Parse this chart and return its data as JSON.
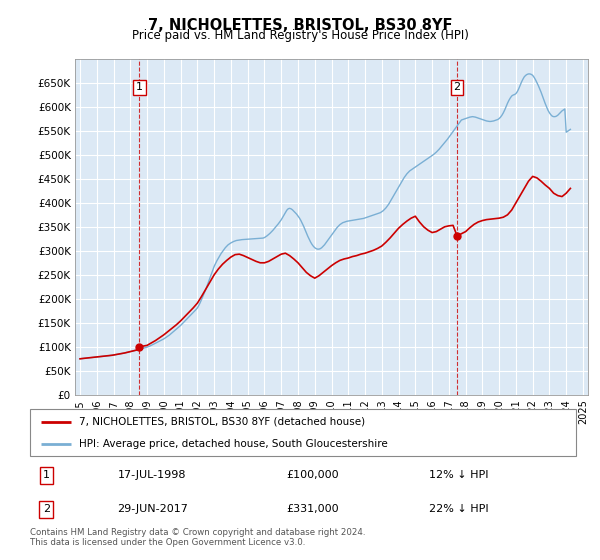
{
  "title": "7, NICHOLETTES, BRISTOL, BS30 8YF",
  "subtitle": "Price paid vs. HM Land Registry's House Price Index (HPI)",
  "legend_line1": "7, NICHOLETTES, BRISTOL, BS30 8YF (detached house)",
  "legend_line2": "HPI: Average price, detached house, South Gloucestershire",
  "footnote": "Contains HM Land Registry data © Crown copyright and database right 2024.\nThis data is licensed under the Open Government Licence v3.0.",
  "point1_date": "17-JUL-1998",
  "point1_price": "£100,000",
  "point1_pct": "12% ↓ HPI",
  "point2_date": "29-JUN-2017",
  "point2_price": "£331,000",
  "point2_pct": "22% ↓ HPI",
  "red_color": "#cc0000",
  "blue_color": "#7aafd4",
  "bg_color": "#dce9f5",
  "ylim": [
    0,
    700000
  ],
  "yticks": [
    0,
    50000,
    100000,
    150000,
    200000,
    250000,
    300000,
    350000,
    400000,
    450000,
    500000,
    550000,
    600000,
    650000
  ],
  "ytick_labels": [
    "£0",
    "£50K",
    "£100K",
    "£150K",
    "£200K",
    "£250K",
    "£300K",
    "£350K",
    "£400K",
    "£450K",
    "£500K",
    "£550K",
    "£600K",
    "£650K"
  ],
  "xlim_start": 1994.7,
  "xlim_end": 2025.3,
  "point1_x": 1998.54,
  "point1_y": 100000,
  "point2_x": 2017.49,
  "point2_y": 331000,
  "hpi_x": [
    1995.0,
    1995.083,
    1995.167,
    1995.25,
    1995.333,
    1995.417,
    1995.5,
    1995.583,
    1995.667,
    1995.75,
    1995.833,
    1995.917,
    1996.0,
    1996.083,
    1996.167,
    1996.25,
    1996.333,
    1996.417,
    1996.5,
    1996.583,
    1996.667,
    1996.75,
    1996.833,
    1996.917,
    1997.0,
    1997.083,
    1997.167,
    1997.25,
    1997.333,
    1997.417,
    1997.5,
    1997.583,
    1997.667,
    1997.75,
    1997.833,
    1997.917,
    1998.0,
    1998.083,
    1998.167,
    1998.25,
    1998.333,
    1998.417,
    1998.5,
    1998.583,
    1998.667,
    1998.75,
    1998.833,
    1998.917,
    1999.0,
    1999.083,
    1999.167,
    1999.25,
    1999.333,
    1999.417,
    1999.5,
    1999.583,
    1999.667,
    1999.75,
    1999.833,
    1999.917,
    2000.0,
    2000.083,
    2000.167,
    2000.25,
    2000.333,
    2000.417,
    2000.5,
    2000.583,
    2000.667,
    2000.75,
    2000.833,
    2000.917,
    2001.0,
    2001.083,
    2001.167,
    2001.25,
    2001.333,
    2001.417,
    2001.5,
    2001.583,
    2001.667,
    2001.75,
    2001.833,
    2001.917,
    2002.0,
    2002.083,
    2002.167,
    2002.25,
    2002.333,
    2002.417,
    2002.5,
    2002.583,
    2002.667,
    2002.75,
    2002.833,
    2002.917,
    2003.0,
    2003.083,
    2003.167,
    2003.25,
    2003.333,
    2003.417,
    2003.5,
    2003.583,
    2003.667,
    2003.75,
    2003.833,
    2003.917,
    2004.0,
    2004.083,
    2004.167,
    2004.25,
    2004.333,
    2004.417,
    2004.5,
    2004.583,
    2004.667,
    2004.75,
    2004.833,
    2004.917,
    2005.0,
    2005.083,
    2005.167,
    2005.25,
    2005.333,
    2005.417,
    2005.5,
    2005.583,
    2005.667,
    2005.75,
    2005.833,
    2005.917,
    2006.0,
    2006.083,
    2006.167,
    2006.25,
    2006.333,
    2006.417,
    2006.5,
    2006.583,
    2006.667,
    2006.75,
    2006.833,
    2006.917,
    2007.0,
    2007.083,
    2007.167,
    2007.25,
    2007.333,
    2007.417,
    2007.5,
    2007.583,
    2007.667,
    2007.75,
    2007.833,
    2007.917,
    2008.0,
    2008.083,
    2008.167,
    2008.25,
    2008.333,
    2008.417,
    2008.5,
    2008.583,
    2008.667,
    2008.75,
    2008.833,
    2008.917,
    2009.0,
    2009.083,
    2009.167,
    2009.25,
    2009.333,
    2009.417,
    2009.5,
    2009.583,
    2009.667,
    2009.75,
    2009.833,
    2009.917,
    2010.0,
    2010.083,
    2010.167,
    2010.25,
    2010.333,
    2010.417,
    2010.5,
    2010.583,
    2010.667,
    2010.75,
    2010.833,
    2010.917,
    2011.0,
    2011.083,
    2011.167,
    2011.25,
    2011.333,
    2011.417,
    2011.5,
    2011.583,
    2011.667,
    2011.75,
    2011.833,
    2011.917,
    2012.0,
    2012.083,
    2012.167,
    2012.25,
    2012.333,
    2012.417,
    2012.5,
    2012.583,
    2012.667,
    2012.75,
    2012.833,
    2012.917,
    2013.0,
    2013.083,
    2013.167,
    2013.25,
    2013.333,
    2013.417,
    2013.5,
    2013.583,
    2013.667,
    2013.75,
    2013.833,
    2013.917,
    2014.0,
    2014.083,
    2014.167,
    2014.25,
    2014.333,
    2014.417,
    2014.5,
    2014.583,
    2014.667,
    2014.75,
    2014.833,
    2014.917,
    2015.0,
    2015.083,
    2015.167,
    2015.25,
    2015.333,
    2015.417,
    2015.5,
    2015.583,
    2015.667,
    2015.75,
    2015.833,
    2015.917,
    2016.0,
    2016.083,
    2016.167,
    2016.25,
    2016.333,
    2016.417,
    2016.5,
    2016.583,
    2016.667,
    2016.75,
    2016.833,
    2016.917,
    2017.0,
    2017.083,
    2017.167,
    2017.25,
    2017.333,
    2017.417,
    2017.5,
    2017.583,
    2017.667,
    2017.75,
    2017.833,
    2017.917,
    2018.0,
    2018.083,
    2018.167,
    2018.25,
    2018.333,
    2018.417,
    2018.5,
    2018.583,
    2018.667,
    2018.75,
    2018.833,
    2018.917,
    2019.0,
    2019.083,
    2019.167,
    2019.25,
    2019.333,
    2019.417,
    2019.5,
    2019.583,
    2019.667,
    2019.75,
    2019.833,
    2019.917,
    2020.0,
    2020.083,
    2020.167,
    2020.25,
    2020.333,
    2020.417,
    2020.5,
    2020.583,
    2020.667,
    2020.75,
    2020.833,
    2020.917,
    2021.0,
    2021.083,
    2021.167,
    2021.25,
    2021.333,
    2021.417,
    2021.5,
    2021.583,
    2021.667,
    2021.75,
    2021.833,
    2021.917,
    2022.0,
    2022.083,
    2022.167,
    2022.25,
    2022.333,
    2022.417,
    2022.5,
    2022.583,
    2022.667,
    2022.75,
    2022.833,
    2022.917,
    2023.0,
    2023.083,
    2023.167,
    2023.25,
    2023.333,
    2023.417,
    2023.5,
    2023.583,
    2023.667,
    2023.75,
    2023.833,
    2023.917,
    2024.0,
    2024.083,
    2024.167,
    2024.25
  ],
  "hpi_y": [
    75000,
    75400,
    75700,
    76000,
    76300,
    76600,
    77000,
    77300,
    77600,
    77900,
    78200,
    78500,
    78900,
    79200,
    79500,
    79800,
    80100,
    80400,
    80700,
    81000,
    81300,
    81600,
    82000,
    82400,
    82900,
    83400,
    83900,
    84400,
    84900,
    85400,
    86000,
    86600,
    87200,
    87900,
    88600,
    89300,
    90100,
    90800,
    91500,
    92200,
    92900,
    93600,
    94400,
    95200,
    96000,
    96800,
    97600,
    98400,
    99400,
    100400,
    101600,
    103000,
    104500,
    106000,
    107500,
    109000,
    110500,
    112000,
    113500,
    115000,
    116500,
    118500,
    120500,
    122500,
    124500,
    127000,
    129500,
    132000,
    134500,
    137000,
    139500,
    142000,
    144500,
    147500,
    150500,
    153500,
    156500,
    159500,
    162500,
    165500,
    168500,
    171500,
    174500,
    177500,
    181000,
    186000,
    192000,
    198500,
    205500,
    212500,
    219500,
    227500,
    235500,
    243500,
    251500,
    259500,
    267500,
    273500,
    279500,
    284500,
    289500,
    294500,
    298500,
    302500,
    306500,
    309500,
    312500,
    314500,
    316500,
    318000,
    319500,
    320500,
    321500,
    322000,
    322500,
    323000,
    323300,
    323500,
    323700,
    324000,
    324300,
    324500,
    324700,
    324900,
    325100,
    325300,
    325500,
    325700,
    325900,
    326100,
    326300,
    326500,
    327500,
    329500,
    331500,
    334000,
    336500,
    339500,
    342500,
    346000,
    349500,
    353000,
    356500,
    360500,
    364500,
    369500,
    374500,
    379500,
    384500,
    387500,
    388500,
    387500,
    385500,
    382500,
    379500,
    376500,
    372500,
    368500,
    363500,
    357500,
    351500,
    344500,
    337500,
    330500,
    324500,
    318500,
    313500,
    309500,
    306500,
    304500,
    303500,
    303500,
    304500,
    306500,
    309500,
    312500,
    316500,
    320500,
    324500,
    328500,
    332500,
    336500,
    340500,
    344500,
    348500,
    351500,
    354500,
    356500,
    358500,
    359500,
    360500,
    361500,
    362000,
    362500,
    363000,
    363500,
    364000,
    364500,
    365000,
    365500,
    366000,
    366500,
    367000,
    367500,
    368500,
    369500,
    370500,
    371500,
    372500,
    373500,
    374500,
    375500,
    376500,
    377500,
    378500,
    379500,
    381500,
    383500,
    386500,
    389500,
    393500,
    397500,
    402500,
    407500,
    412500,
    417500,
    422500,
    427500,
    432500,
    437500,
    442500,
    447500,
    452500,
    456500,
    460500,
    463500,
    466500,
    468500,
    470500,
    472500,
    474500,
    476500,
    478500,
    480500,
    482500,
    484500,
    486500,
    488500,
    490500,
    492500,
    494500,
    496500,
    498500,
    500500,
    503000,
    505500,
    508500,
    511500,
    515000,
    518500,
    522000,
    525500,
    529000,
    532500,
    536500,
    540500,
    544500,
    548500,
    552500,
    556500,
    560500,
    564500,
    568500,
    572500,
    573500,
    574500,
    575500,
    576500,
    577500,
    578500,
    579000,
    579500,
    579000,
    578500,
    577500,
    576500,
    575500,
    574500,
    573500,
    572500,
    571500,
    570500,
    570000,
    569500,
    569500,
    570000,
    570500,
    571500,
    572500,
    573500,
    575500,
    578500,
    582500,
    587500,
    593500,
    600500,
    607500,
    613500,
    618500,
    622500,
    624500,
    625500,
    627500,
    631500,
    637500,
    644500,
    651500,
    657500,
    662500,
    665500,
    667500,
    668500,
    668500,
    667500,
    665500,
    661500,
    656500,
    650500,
    644500,
    637500,
    630500,
    622500,
    614500,
    606500,
    599500,
    592500,
    587500,
    583500,
    580500,
    579500,
    579500,
    580500,
    582500,
    585500,
    588500,
    591500,
    593500,
    595500,
    547000,
    549000,
    551000,
    553000
  ],
  "red_x": [
    1995.0,
    1995.08,
    1995.17,
    1995.25,
    1995.33,
    1995.42,
    1995.5,
    1995.58,
    1995.67,
    1995.75,
    1995.83,
    1995.92,
    1996.0,
    1996.08,
    1996.17,
    1996.25,
    1996.33,
    1996.42,
    1996.5,
    1996.58,
    1996.67,
    1996.75,
    1996.83,
    1996.92,
    1997.0,
    1997.08,
    1997.17,
    1997.25,
    1997.33,
    1997.42,
    1997.5,
    1997.58,
    1997.67,
    1997.75,
    1997.83,
    1997.92,
    1998.0,
    1998.08,
    1998.17,
    1998.25,
    1998.33,
    1998.42,
    1998.54,
    1999.0,
    1999.25,
    1999.5,
    1999.75,
    2000.0,
    2000.25,
    2000.5,
    2000.75,
    2001.0,
    2001.25,
    2001.5,
    2001.75,
    2002.0,
    2002.25,
    2002.5,
    2002.75,
    2003.0,
    2003.25,
    2003.5,
    2003.75,
    2004.0,
    2004.25,
    2004.5,
    2004.75,
    2005.0,
    2005.25,
    2005.5,
    2005.75,
    2006.0,
    2006.25,
    2006.5,
    2006.75,
    2007.0,
    2007.25,
    2007.5,
    2007.75,
    2008.0,
    2008.25,
    2008.5,
    2008.75,
    2009.0,
    2009.25,
    2009.5,
    2009.75,
    2010.0,
    2010.25,
    2010.5,
    2010.75,
    2011.0,
    2011.25,
    2011.5,
    2011.75,
    2012.0,
    2012.25,
    2012.5,
    2012.75,
    2013.0,
    2013.25,
    2013.5,
    2013.75,
    2014.0,
    2014.25,
    2014.5,
    2014.75,
    2015.0,
    2015.25,
    2015.5,
    2015.75,
    2016.0,
    2016.25,
    2016.5,
    2016.75,
    2017.0,
    2017.25,
    2017.49,
    2018.0,
    2018.25,
    2018.5,
    2018.75,
    2019.0,
    2019.25,
    2019.5,
    2019.75,
    2020.0,
    2020.25,
    2020.5,
    2020.75,
    2021.0,
    2021.25,
    2021.5,
    2021.75,
    2022.0,
    2022.25,
    2022.5,
    2022.75,
    2023.0,
    2023.25,
    2023.5,
    2023.75,
    2024.0,
    2024.25
  ],
  "red_y": [
    75000,
    75400,
    75700,
    76000,
    76300,
    76600,
    77000,
    77300,
    77600,
    77900,
    78200,
    78500,
    78900,
    79200,
    79500,
    79800,
    80100,
    80400,
    80700,
    81000,
    81300,
    81600,
    82000,
    82400,
    82900,
    83400,
    83900,
    84400,
    84900,
    85400,
    86000,
    86600,
    87200,
    87900,
    88600,
    89300,
    90100,
    90800,
    91500,
    92200,
    92900,
    93600,
    100000,
    103000,
    108000,
    113000,
    119000,
    125000,
    132000,
    139000,
    146000,
    154000,
    163000,
    172000,
    181000,
    191000,
    205000,
    220000,
    235000,
    250000,
    262000,
    272000,
    280000,
    287000,
    292000,
    293000,
    290000,
    286000,
    282000,
    278000,
    275000,
    275000,
    278000,
    283000,
    288000,
    293000,
    295000,
    290000,
    283000,
    275000,
    265000,
    255000,
    248000,
    243000,
    248000,
    255000,
    262000,
    269000,
    275000,
    280000,
    283000,
    285000,
    288000,
    290000,
    293000,
    295000,
    298000,
    301000,
    305000,
    310000,
    318000,
    327000,
    337000,
    347000,
    355000,
    362000,
    368000,
    372000,
    360000,
    350000,
    343000,
    338000,
    340000,
    345000,
    350000,
    352000,
    353000,
    331000,
    340000,
    348000,
    355000,
    360000,
    363000,
    365000,
    366000,
    367000,
    368000,
    370000,
    375000,
    385000,
    400000,
    415000,
    430000,
    445000,
    455000,
    452000,
    445000,
    437000,
    430000,
    420000,
    415000,
    413000,
    420000,
    430000
  ]
}
